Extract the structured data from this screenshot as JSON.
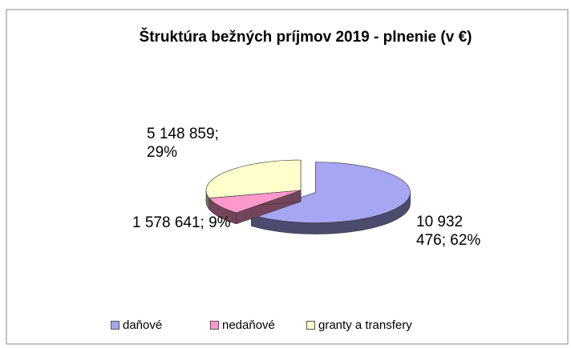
{
  "chart_data": {
    "type": "pie",
    "title": "Štruktúra bežných príjmov 2019 - plnenie (v €)",
    "categories": [
      "daňové",
      "nedaňové",
      "granty a transfery"
    ],
    "values": [
      10932476,
      1578641,
      5148859
    ],
    "value_labels": [
      "10 932 476; 62%",
      "1 578 641; 9%",
      "5 148 859; 29%"
    ],
    "colors": [
      "#a6a6f2",
      "#ff99cc",
      "#ffffcc"
    ],
    "exploded": [
      true,
      false,
      false
    ],
    "legend": "bottom"
  }
}
